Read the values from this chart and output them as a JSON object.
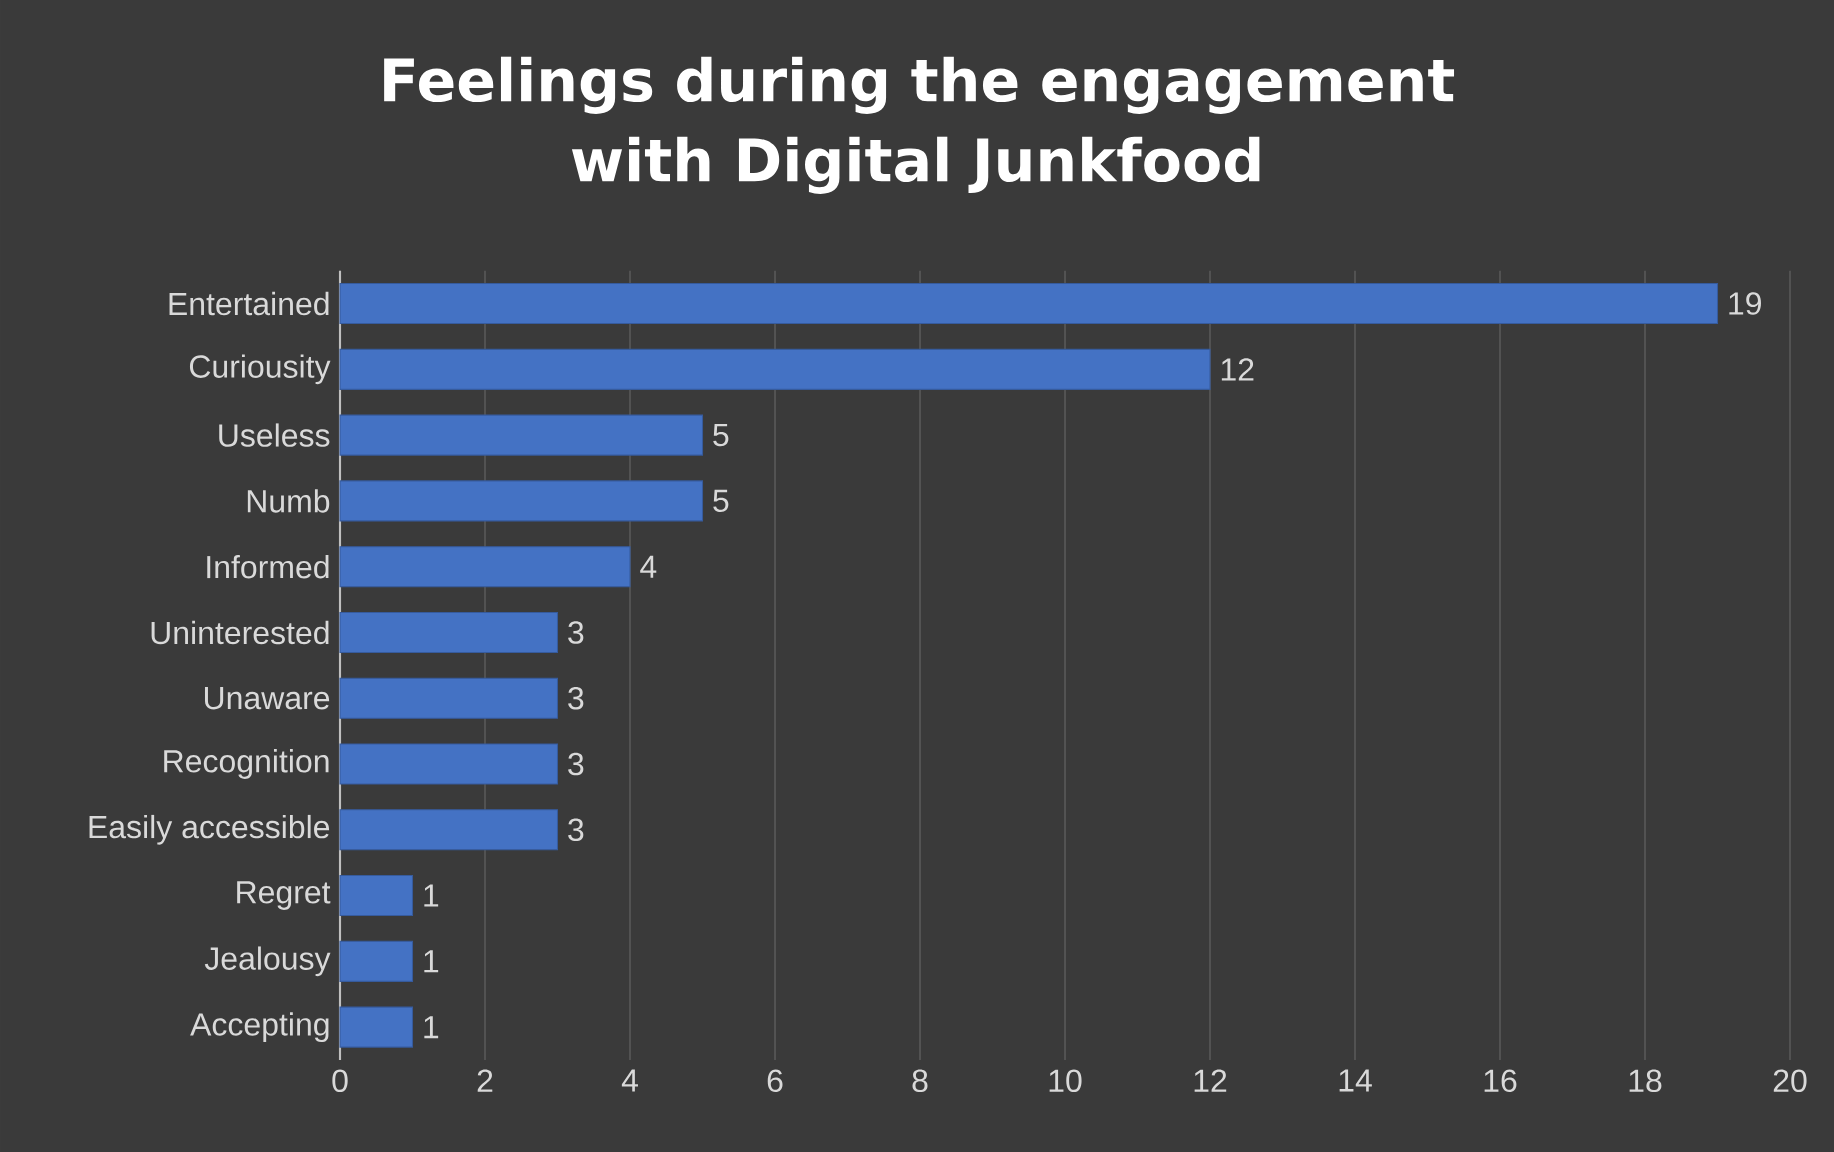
{
  "chart_data": {
    "type": "bar",
    "orientation": "horizontal",
    "title": "Feelings during the engagement with Digital Junkfood",
    "categories": [
      "Entertained",
      "Curiousity",
      "Useless",
      "Numb",
      "Informed",
      "Uninterested",
      "Unaware",
      "Recognition",
      "Easily accessible",
      "Regret",
      "Jealousy",
      "Accepting"
    ],
    "values": [
      19,
      12,
      5,
      5,
      4,
      3,
      3,
      3,
      3,
      1,
      1,
      1
    ],
    "color": "#4472c4",
    "xlim": [
      0,
      20
    ],
    "xticks": [
      0,
      2,
      4,
      6,
      8,
      10,
      12,
      14,
      16,
      18,
      20
    ],
    "grid": "x",
    "data_labels": true
  }
}
